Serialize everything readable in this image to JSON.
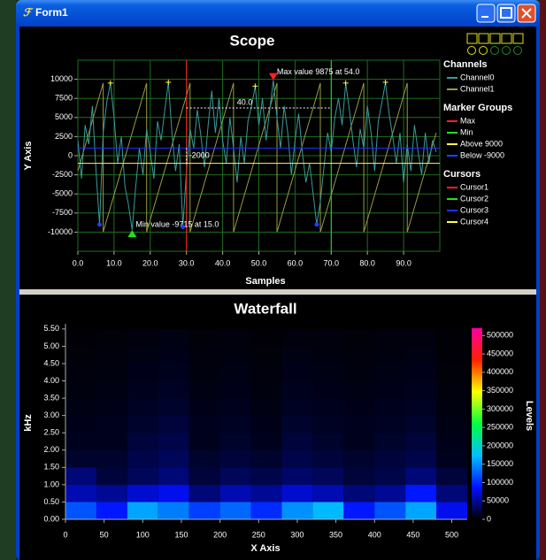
{
  "window": {
    "title": "Form1"
  },
  "chart_data": [
    {
      "type": "line",
      "title": "Scope",
      "xlabel": "Samples",
      "ylabel": "Y Axis",
      "xlim": [
        0,
        100
      ],
      "ylim": [
        -12500,
        12500
      ],
      "xticks": [
        {
          "value": 0,
          "label": "0.0"
        },
        {
          "value": 10,
          "label": "10.0"
        },
        {
          "value": 20,
          "label": "20.0"
        },
        {
          "value": 30,
          "label": "30.0"
        },
        {
          "value": 40,
          "label": "40.0"
        },
        {
          "value": 50,
          "label": "50.0"
        },
        {
          "value": 60,
          "label": "60.0"
        },
        {
          "value": 70,
          "label": "70.0"
        },
        {
          "value": 80,
          "label": "80.0"
        },
        {
          "value": 90,
          "label": "90.0"
        }
      ],
      "yticks": [
        -10000,
        -7500,
        -5000,
        -2500,
        0,
        2500,
        5000,
        7500,
        10000
      ],
      "grid": true,
      "grid_color": "#1e6e1e",
      "legend_title": "Channels",
      "series": [
        {
          "name": "Channel0",
          "color": "#3a9a9a",
          "x": [
            0,
            1,
            2,
            3,
            4,
            5,
            6,
            7,
            8,
            9,
            10,
            11,
            12,
            13,
            14,
            15,
            16,
            17,
            18,
            19,
            20,
            21,
            22,
            23,
            24,
            25,
            26,
            27,
            28,
            29,
            30,
            31,
            32,
            33,
            34,
            35,
            36,
            37,
            38,
            39,
            40,
            41,
            42,
            43,
            44,
            45,
            46,
            47,
            48,
            49,
            50,
            51,
            52,
            53,
            54,
            55,
            56,
            57,
            58,
            59,
            60,
            61,
            62,
            63,
            64,
            65,
            66,
            67,
            68,
            69,
            70,
            71,
            72,
            73,
            74,
            75,
            76,
            77,
            78,
            79,
            80,
            81,
            82,
            83,
            84,
            85,
            86,
            87,
            88,
            89,
            90,
            91,
            92,
            93,
            94,
            95,
            96,
            97,
            98,
            99
          ],
          "values": [
            2000,
            -3000,
            4000,
            1500,
            6500,
            -2000,
            -9000,
            3000,
            7000,
            9500,
            5000,
            -1000,
            2500,
            -4000,
            -6500,
            -9715,
            -4000,
            1000,
            -2500,
            3500,
            500,
            -3000,
            4500,
            2000,
            6000,
            9600,
            3000,
            -2000,
            1500,
            -9300,
            -2000,
            3500,
            1000,
            6000,
            2500,
            -1500,
            4000,
            8500,
            3000,
            7500,
            2000,
            -1000,
            5000,
            1000,
            -3500,
            2500,
            -1000,
            4500,
            6500,
            9100,
            4000,
            7500,
            2000,
            6000,
            9875,
            5000,
            1000,
            6500,
            3000,
            -2500,
            2000,
            5500,
            500,
            -3500,
            -1000,
            -5000,
            -9000,
            -6000,
            -1500,
            3000,
            500,
            5000,
            7500,
            4000,
            9500,
            6000,
            2000,
            -1500,
            3500,
            1000,
            6500,
            3000,
            -2000,
            4500,
            7000,
            9600,
            5500,
            2500,
            -1000,
            3000,
            -3500,
            1500,
            -2000,
            4000,
            500,
            -2500,
            3000,
            -1000,
            2000,
            500
          ]
        },
        {
          "name": "Channel1",
          "color": "#9a9a40",
          "x": [
            0,
            7,
            7,
            19,
            19,
            31,
            31,
            43,
            43,
            55,
            55,
            67,
            67,
            79,
            79,
            91,
            91,
            99
          ],
          "values": [
            -2000,
            9500,
            -10000,
            9500,
            -10000,
            9500,
            -10000,
            9500,
            -10000,
            9500,
            -10000,
            9500,
            -10000,
            9500,
            -10000,
            9500,
            -10000,
            3000
          ]
        }
      ],
      "marker_groups_title": "Marker Groups",
      "marker_groups": [
        {
          "name": "Max",
          "color": "#ff2020",
          "shape": "triangle-down",
          "indices": [
            54
          ],
          "annotation": "Max value 9875 at 54.0"
        },
        {
          "name": "Min",
          "color": "#20e020",
          "shape": "triangle-up",
          "indices": [
            15
          ],
          "annotation": "Min value -9715 at 15.0"
        },
        {
          "name": "Above 9000",
          "color": "#ffff40",
          "shape": "plus",
          "indices": [
            9,
            25,
            49,
            74,
            85
          ]
        },
        {
          "name": "Below -9000",
          "color": "#2040ff",
          "shape": "circle",
          "indices": [
            6,
            29,
            66
          ]
        }
      ],
      "cursors_title": "Cursors",
      "cursors": [
        {
          "name": "Cursor1",
          "color": "#ff2020",
          "x": 30
        },
        {
          "name": "Cursor2",
          "color": "#20e020",
          "x": 70
        },
        {
          "name": "Cursor3",
          "color": "#2030ff",
          "y": 1000
        },
        {
          "name": "Cursor4",
          "color": "#ffff40",
          "y": -1000
        }
      ],
      "cursor_readouts": [
        "40.0",
        "-2000"
      ]
    },
    {
      "type": "heatmap",
      "title": "Waterfall",
      "xlabel": "X Axis",
      "ylabel": "kHz",
      "colorbar_label": "Levels",
      "xlim": [
        0,
        520
      ],
      "ylim": [
        0,
        5.65
      ],
      "xticks": [
        0,
        50,
        100,
        150,
        200,
        250,
        300,
        350,
        400,
        450,
        500
      ],
      "yticks": [
        {
          "value": 0,
          "label": "0.00"
        },
        {
          "value": 0.5,
          "label": "0.50"
        },
        {
          "value": 1,
          "label": "1.00"
        },
        {
          "value": 1.5,
          "label": "1.50"
        },
        {
          "value": 2,
          "label": "2.00"
        },
        {
          "value": 2.5,
          "label": "2.50"
        },
        {
          "value": 3,
          "label": "3.00"
        },
        {
          "value": 3.5,
          "label": "3.50"
        },
        {
          "value": 4,
          "label": "4.00"
        },
        {
          "value": 4.5,
          "label": "4.50"
        },
        {
          "value": 5,
          "label": "5.00"
        },
        {
          "value": 5.5,
          "label": "5.50"
        }
      ],
      "xbins": [
        0,
        40,
        80,
        120,
        160,
        200,
        240,
        280,
        320,
        360,
        400,
        440,
        480,
        520
      ],
      "ybins": [
        0,
        0.5,
        1,
        1.5,
        2,
        2.5,
        3,
        3.5,
        4,
        4.5,
        5,
        5.5
      ],
      "values": [
        [
          120000,
          90000,
          160000,
          140000,
          110000,
          130000,
          100000,
          150000,
          170000,
          90000,
          120000,
          160000,
          80000
        ],
        [
          60000,
          50000,
          70000,
          80000,
          40000,
          60000,
          50000,
          70000,
          60000,
          40000,
          50000,
          90000,
          40000
        ],
        [
          40000,
          20000,
          30000,
          40000,
          20000,
          30000,
          25000,
          35000,
          30000,
          20000,
          25000,
          40000,
          20000
        ],
        [
          15000,
          15000,
          25000,
          30000,
          15000,
          20000,
          15000,
          25000,
          20000,
          15000,
          20000,
          25000,
          10000
        ],
        [
          10000,
          10000,
          20000,
          25000,
          10000,
          15000,
          10000,
          20000,
          15000,
          10000,
          15000,
          20000,
          8000
        ],
        [
          8000,
          10000,
          15000,
          20000,
          10000,
          12000,
          8000,
          15000,
          12000,
          10000,
          12000,
          15000,
          6000
        ],
        [
          6000,
          8000,
          12000,
          15000,
          8000,
          10000,
          6000,
          12000,
          10000,
          8000,
          10000,
          12000,
          5000
        ],
        [
          5000,
          6000,
          10000,
          12000,
          6000,
          8000,
          5000,
          10000,
          8000,
          6000,
          8000,
          10000,
          4000
        ],
        [
          4000,
          5000,
          8000,
          10000,
          5000,
          6000,
          4000,
          8000,
          6000,
          5000,
          6000,
          8000,
          3000
        ],
        [
          3000,
          4000,
          6000,
          8000,
          4000,
          5000,
          3000,
          6000,
          5000,
          4000,
          5000,
          6000,
          2000
        ],
        [
          2000,
          3000,
          4000,
          6000,
          3000,
          4000,
          2000,
          4000,
          4000,
          3000,
          4000,
          4000,
          2000
        ]
      ],
      "clim": [
        0,
        520000
      ],
      "cticks": [
        0,
        50000,
        100000,
        150000,
        200000,
        250000,
        300000,
        350000,
        400000,
        450000,
        500000
      ],
      "colorscale": [
        "#000000",
        "#0010ff",
        "#00c0ff",
        "#00ff40",
        "#ffff00",
        "#ff2000",
        "#ff00a0"
      ]
    }
  ]
}
